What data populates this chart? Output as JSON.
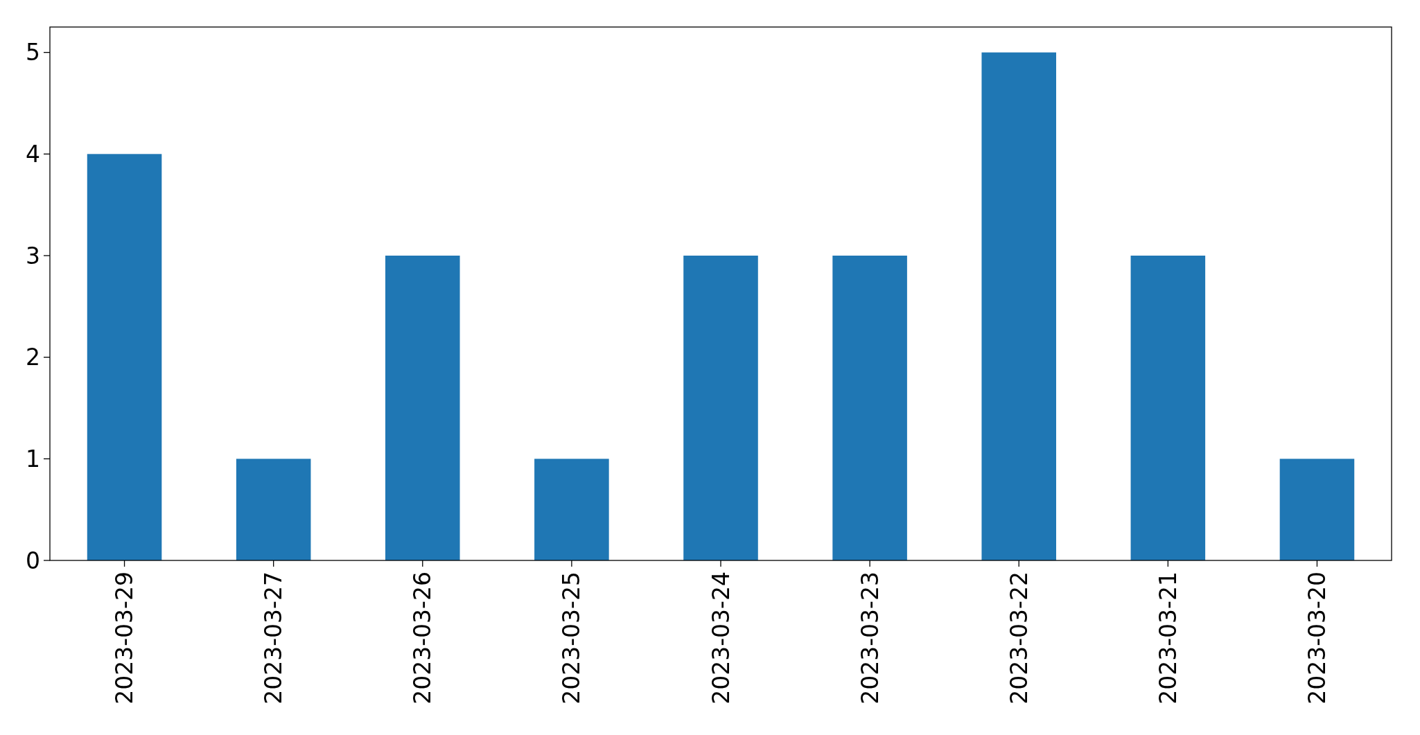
{
  "chart_data": {
    "type": "bar",
    "categories": [
      "2023-03-29",
      "2023-03-27",
      "2023-03-26",
      "2023-03-25",
      "2023-03-24",
      "2023-03-23",
      "2023-03-22",
      "2023-03-21",
      "2023-03-20"
    ],
    "values": [
      4,
      1,
      3,
      1,
      3,
      3,
      5,
      3,
      1
    ],
    "color": "#1f77b4",
    "ylim": [
      0,
      5.25
    ],
    "yticks": [
      0,
      1,
      2,
      3,
      4,
      5
    ],
    "grid": false
  }
}
